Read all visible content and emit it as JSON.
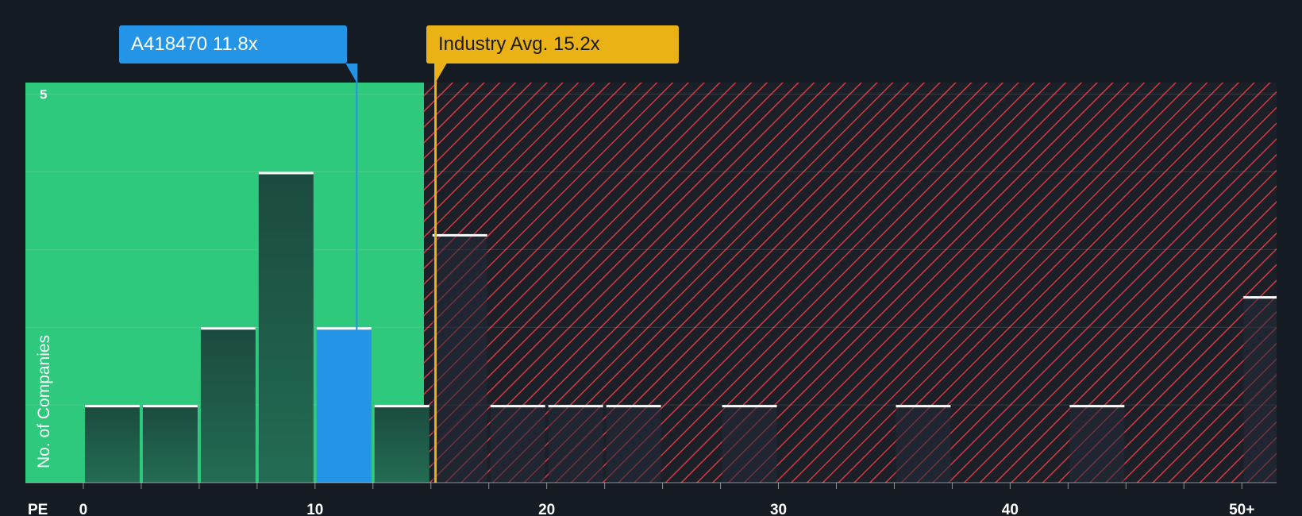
{
  "chart_data": {
    "type": "bar",
    "xlabel": "PE",
    "ylabel": "No. of Companies",
    "xlim": [
      -2.5,
      51.5
    ],
    "ylim": [
      0,
      5.15
    ],
    "x_tick_labels": [
      {
        "value": 0,
        "label": "0"
      },
      {
        "value": 10,
        "label": "10"
      },
      {
        "value": 20,
        "label": "20"
      },
      {
        "value": 30,
        "label": "30"
      },
      {
        "value": 40,
        "label": "40"
      },
      {
        "value": 50,
        "label": "50+"
      }
    ],
    "minor_ticks": [
      2.5,
      5,
      7.5,
      12.5,
      15,
      17.5,
      22.5,
      25,
      27.5,
      32.5,
      35,
      37.5,
      42.5,
      45,
      47.5
    ],
    "y_tick_labels": [
      {
        "value": 5,
        "label": "5"
      }
    ],
    "y_gridlines": [
      1,
      2,
      3,
      4,
      5
    ],
    "bin_width": 2.5,
    "bars": [
      {
        "x0": 0,
        "x1": 2.5,
        "value": 1
      },
      {
        "x0": 2.5,
        "x1": 5,
        "value": 1
      },
      {
        "x0": 5,
        "x1": 7.5,
        "value": 2
      },
      {
        "x0": 7.5,
        "x1": 10,
        "value": 4
      },
      {
        "x0": 10,
        "x1": 12.5,
        "value": 2,
        "highlight": true
      },
      {
        "x0": 12.5,
        "x1": 15,
        "value": 1
      },
      {
        "x0": 15,
        "x1": 17.5,
        "value": 3.2
      },
      {
        "x0": 17.5,
        "x1": 20,
        "value": 1
      },
      {
        "x0": 20,
        "x1": 22.5,
        "value": 1
      },
      {
        "x0": 22.5,
        "x1": 25,
        "value": 1
      },
      {
        "x0": 27.5,
        "x1": 30,
        "value": 1
      },
      {
        "x0": 35,
        "x1": 37.5,
        "value": 1
      },
      {
        "x0": 42.5,
        "x1": 45,
        "value": 1
      },
      {
        "x0": 50,
        "x1": 52.5,
        "value": 2.4
      }
    ],
    "company": {
      "ticker": "A418470",
      "pe": 11.8,
      "label": "A418470 11.8x"
    },
    "industry_avg": {
      "pe": 15.2,
      "label": "Industry Avg. 15.2x"
    },
    "fair_zone_end": 14.7,
    "colors": {
      "background": "#151b23",
      "undervalued_zone": "#2ec97c",
      "overvalued_zone": "#1b1f27",
      "hatch": "#d63a3f",
      "bar_fill_top": "#1b4a3f",
      "bar_fill_bottom": "#236c53",
      "bar_cap": "#ffffff",
      "highlight_bar": "#2394e6",
      "company_line": "#2394e6",
      "industry_line": "#ebb216",
      "axis_text": "#ffffff"
    }
  }
}
